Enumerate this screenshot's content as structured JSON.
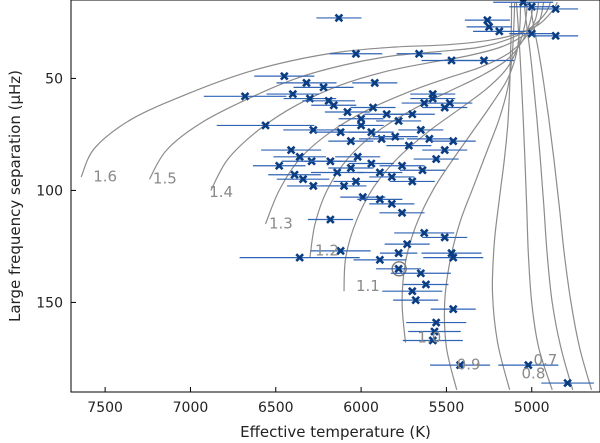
{
  "chart_data": {
    "type": "scatter",
    "xlabel": "Effective temperature (K)",
    "ylabel": "Large frequency separation (μHz)",
    "x_reversed": true,
    "y_reversed": true,
    "xlim": [
      7700,
      4600
    ],
    "ylim": [
      15,
      190
    ],
    "xticks": [
      "7500",
      "7000",
      "6500",
      "6000",
      "5500",
      "5000"
    ],
    "yticks": [
      "50",
      "100",
      "150"
    ],
    "xtick_values": [
      7500,
      7000,
      6500,
      6000,
      5500,
      5000
    ],
    "ytick_values": [
      50,
      100,
      150
    ],
    "colors": {
      "points": "#0b3d82",
      "errorbars": "#2f63b4",
      "tracks": "#8c8c8c",
      "labels": "#8a8a8a"
    },
    "tracks": [
      {
        "label": "1.6",
        "label_at": [
          7500,
          96
        ],
        "points": [
          [
            7640,
            94
          ],
          [
            7560,
            81
          ],
          [
            7340,
            68
          ],
          [
            7020,
            57
          ],
          [
            6700,
            48
          ],
          [
            6400,
            42
          ],
          [
            6100,
            38
          ],
          [
            5800,
            36
          ],
          [
            5500,
            35
          ],
          [
            5250,
            33
          ],
          [
            5080,
            30
          ],
          [
            4960,
            26
          ],
          [
            4880,
            20
          ],
          [
            4850,
            16
          ]
        ]
      },
      {
        "label": "1.5",
        "label_at": [
          7150,
          97
        ],
        "points": [
          [
            7240,
            95
          ],
          [
            7140,
            82
          ],
          [
            6940,
            70
          ],
          [
            6660,
            59
          ],
          [
            6380,
            50
          ],
          [
            6100,
            44
          ],
          [
            5820,
            40
          ],
          [
            5540,
            38
          ],
          [
            5300,
            36
          ],
          [
            5120,
            32
          ],
          [
            5000,
            27
          ],
          [
            4920,
            21
          ],
          [
            4890,
            16
          ]
        ]
      },
      {
        "label": "1.4",
        "label_at": [
          6820,
          103
        ],
        "points": [
          [
            6880,
            100
          ],
          [
            6780,
            86
          ],
          [
            6600,
            73
          ],
          [
            6380,
            62
          ],
          [
            6120,
            53
          ],
          [
            5860,
            47
          ],
          [
            5600,
            43
          ],
          [
            5380,
            40
          ],
          [
            5180,
            36
          ],
          [
            5050,
            31
          ],
          [
            4960,
            25
          ],
          [
            4930,
            16
          ]
        ]
      },
      {
        "label": "1.3",
        "label_at": [
          6470,
          117
        ],
        "points": [
          [
            6560,
            115
          ],
          [
            6480,
            100
          ],
          [
            6360,
            86
          ],
          [
            6180,
            74
          ],
          [
            5960,
            64
          ],
          [
            5720,
            56
          ],
          [
            5500,
            50
          ],
          [
            5300,
            45
          ],
          [
            5140,
            39
          ],
          [
            5040,
            32
          ],
          [
            4980,
            24
          ],
          [
            4960,
            16
          ]
        ]
      },
      {
        "label": "1.2",
        "label_at": [
          6200,
          129
        ],
        "points": [
          [
            6300,
            130
          ],
          [
            6270,
            115
          ],
          [
            6200,
            100
          ],
          [
            6080,
            86
          ],
          [
            5910,
            74
          ],
          [
            5700,
            64
          ],
          [
            5490,
            56
          ],
          [
            5300,
            49
          ],
          [
            5150,
            42
          ],
          [
            5060,
            34
          ],
          [
            5010,
            25
          ],
          [
            4990,
            16
          ]
        ]
      },
      {
        "label": "1.1",
        "label_at": [
          5960,
          145
        ],
        "points": [
          [
            6100,
            145
          ],
          [
            6090,
            130
          ],
          [
            6030,
            114
          ],
          [
            5930,
            99
          ],
          [
            5790,
            86
          ],
          [
            5610,
            74
          ],
          [
            5430,
            64
          ],
          [
            5270,
            55
          ],
          [
            5150,
            46
          ],
          [
            5080,
            36
          ],
          [
            5040,
            26
          ],
          [
            5025,
            16
          ]
        ]
      },
      {
        "label": "1.0",
        "label_at": [
          5600,
          168
        ],
        "points": [
          [
            5740,
            168
          ],
          [
            5760,
            150
          ],
          [
            5740,
            132
          ],
          [
            5680,
            116
          ],
          [
            5580,
            100
          ],
          [
            5460,
            86
          ],
          [
            5340,
            73
          ],
          [
            5230,
            61
          ],
          [
            5140,
            50
          ],
          [
            5090,
            39
          ],
          [
            5070,
            27
          ],
          [
            5065,
            16
          ]
        ]
      },
      {
        "label": "0.9",
        "label_at": [
          5370,
          180
        ],
        "points": [
          [
            5440,
            189
          ],
          [
            5500,
            170
          ],
          [
            5510,
            150
          ],
          [
            5480,
            132
          ],
          [
            5420,
            114
          ],
          [
            5340,
            98
          ],
          [
            5260,
            82
          ],
          [
            5190,
            68
          ],
          [
            5140,
            54
          ],
          [
            5115,
            40
          ],
          [
            5105,
            27
          ],
          [
            5100,
            16
          ]
        ]
      },
      {
        "label": "0.8",
        "label_at": [
          4990,
          184
        ],
        "points": [
          [
            5130,
            189
          ],
          [
            5200,
            168
          ],
          [
            5230,
            146
          ],
          [
            5220,
            124
          ],
          [
            5190,
            104
          ],
          [
            5160,
            86
          ],
          [
            5140,
            70
          ],
          [
            5130,
            55
          ],
          [
            5125,
            41
          ],
          [
            5120,
            28
          ],
          [
            5118,
            16
          ]
        ]
      },
      {
        "label": "0.7",
        "label_at": [
          4920,
          178
        ],
        "points": [
          [
            4880,
            189
          ],
          [
            4960,
            170
          ],
          [
            5000,
            150
          ],
          [
            5020,
            128
          ],
          [
            5030,
            106
          ],
          [
            5040,
            86
          ],
          [
            5050,
            68
          ],
          [
            5060,
            52
          ],
          [
            5070,
            38
          ],
          [
            5080,
            26
          ],
          [
            5090,
            16
          ]
        ]
      },
      {
        "label": "",
        "label_at": null,
        "points": [
          [
            4760,
            189
          ],
          [
            4830,
            170
          ],
          [
            4880,
            150
          ],
          [
            4910,
            128
          ],
          [
            4930,
            106
          ],
          [
            4950,
            86
          ],
          [
            4970,
            68
          ],
          [
            4990,
            52
          ],
          [
            5010,
            38
          ],
          [
            5030,
            26
          ],
          [
            5045,
            16
          ]
        ]
      },
      {
        "label": "",
        "label_at": null,
        "points": [
          [
            4650,
            189
          ],
          [
            4720,
            170
          ],
          [
            4770,
            150
          ],
          [
            4810,
            128
          ],
          [
            4840,
            106
          ],
          [
            4870,
            86
          ],
          [
            4900,
            68
          ],
          [
            4930,
            52
          ],
          [
            4960,
            38
          ],
          [
            4990,
            26
          ],
          [
            5010,
            16
          ]
        ]
      }
    ],
    "sun": {
      "teff": 5777,
      "dnu": 135
    },
    "stars": [
      [
        6130,
        23,
        60
      ],
      [
        5050,
        16,
        80
      ],
      [
        5000,
        18,
        60
      ],
      [
        4860,
        19,
        60
      ],
      [
        5260,
        24,
        60
      ],
      [
        5250,
        27,
        60
      ],
      [
        5190,
        29,
        70
      ],
      [
        5000,
        30,
        60
      ],
      [
        4860,
        31,
        60
      ],
      [
        6030,
        39,
        70
      ],
      [
        5660,
        39,
        60
      ],
      [
        5470,
        42,
        80
      ],
      [
        5280,
        42,
        80
      ],
      [
        6680,
        58,
        110
      ],
      [
        6450,
        49,
        80
      ],
      [
        6320,
        52,
        80
      ],
      [
        6220,
        54,
        80
      ],
      [
        5920,
        52,
        60
      ],
      [
        6400,
        57,
        70
      ],
      [
        6300,
        59,
        70
      ],
      [
        6190,
        60,
        70
      ],
      [
        6160,
        62,
        60
      ],
      [
        6080,
        65,
        60
      ],
      [
        6000,
        68,
        60
      ],
      [
        5930,
        63,
        60
      ],
      [
        5850,
        66,
        60
      ],
      [
        5780,
        69,
        60
      ],
      [
        5700,
        66,
        60
      ],
      [
        5630,
        61,
        60
      ],
      [
        5580,
        59,
        60
      ],
      [
        5510,
        63,
        60
      ],
      [
        5580,
        57,
        60
      ],
      [
        5480,
        61,
        60
      ],
      [
        6560,
        71,
        130
      ],
      [
        6280,
        73,
        80
      ],
      [
        6120,
        74,
        70
      ],
      [
        6060,
        78,
        60
      ],
      [
        6000,
        71,
        60
      ],
      [
        5940,
        74,
        60
      ],
      [
        5880,
        77,
        60
      ],
      [
        5800,
        76,
        60
      ],
      [
        5720,
        80,
        60
      ],
      [
        5650,
        73,
        60
      ],
      [
        5600,
        77,
        60
      ],
      [
        5510,
        82,
        60
      ],
      [
        5560,
        86,
        60
      ],
      [
        5460,
        78,
        60
      ],
      [
        6410,
        82,
        80
      ],
      [
        6360,
        85,
        70
      ],
      [
        6290,
        87,
        80
      ],
      [
        6180,
        87,
        70
      ],
      [
        6140,
        92,
        70
      ],
      [
        6060,
        90,
        60
      ],
      [
        6020,
        85,
        60
      ],
      [
        5940,
        88,
        60
      ],
      [
        5890,
        92,
        60
      ],
      [
        5820,
        94,
        60
      ],
      [
        5760,
        89,
        60
      ],
      [
        5700,
        96,
        60
      ],
      [
        5640,
        91,
        60
      ],
      [
        6480,
        89,
        70
      ],
      [
        6390,
        93,
        70
      ],
      [
        6340,
        95,
        70
      ],
      [
        6280,
        98,
        70
      ],
      [
        6100,
        98,
        60
      ],
      [
        6030,
        96,
        60
      ],
      [
        5990,
        103,
        60
      ],
      [
        5890,
        104,
        60
      ],
      [
        5820,
        106,
        60
      ],
      [
        5760,
        110,
        60
      ],
      [
        6180,
        113,
        60
      ],
      [
        6120,
        127,
        80
      ],
      [
        6360,
        130,
        160
      ],
      [
        5890,
        131,
        70
      ],
      [
        5780,
        135,
        60
      ],
      [
        5780,
        128,
        50
      ],
      [
        5730,
        124,
        60
      ],
      [
        5630,
        119,
        80
      ],
      [
        5510,
        121,
        60
      ],
      [
        5460,
        130,
        80
      ],
      [
        5470,
        128,
        80
      ],
      [
        5650,
        137,
        80
      ],
      [
        5620,
        142,
        60
      ],
      [
        5700,
        145,
        80
      ],
      [
        5680,
        149,
        60
      ],
      [
        5460,
        153,
        60
      ],
      [
        5560,
        159,
        80
      ],
      [
        5570,
        163,
        70
      ],
      [
        5580,
        167,
        80
      ],
      [
        5420,
        178,
        80
      ],
      [
        5020,
        178,
        80
      ],
      [
        4790,
        186,
        70
      ]
    ]
  }
}
